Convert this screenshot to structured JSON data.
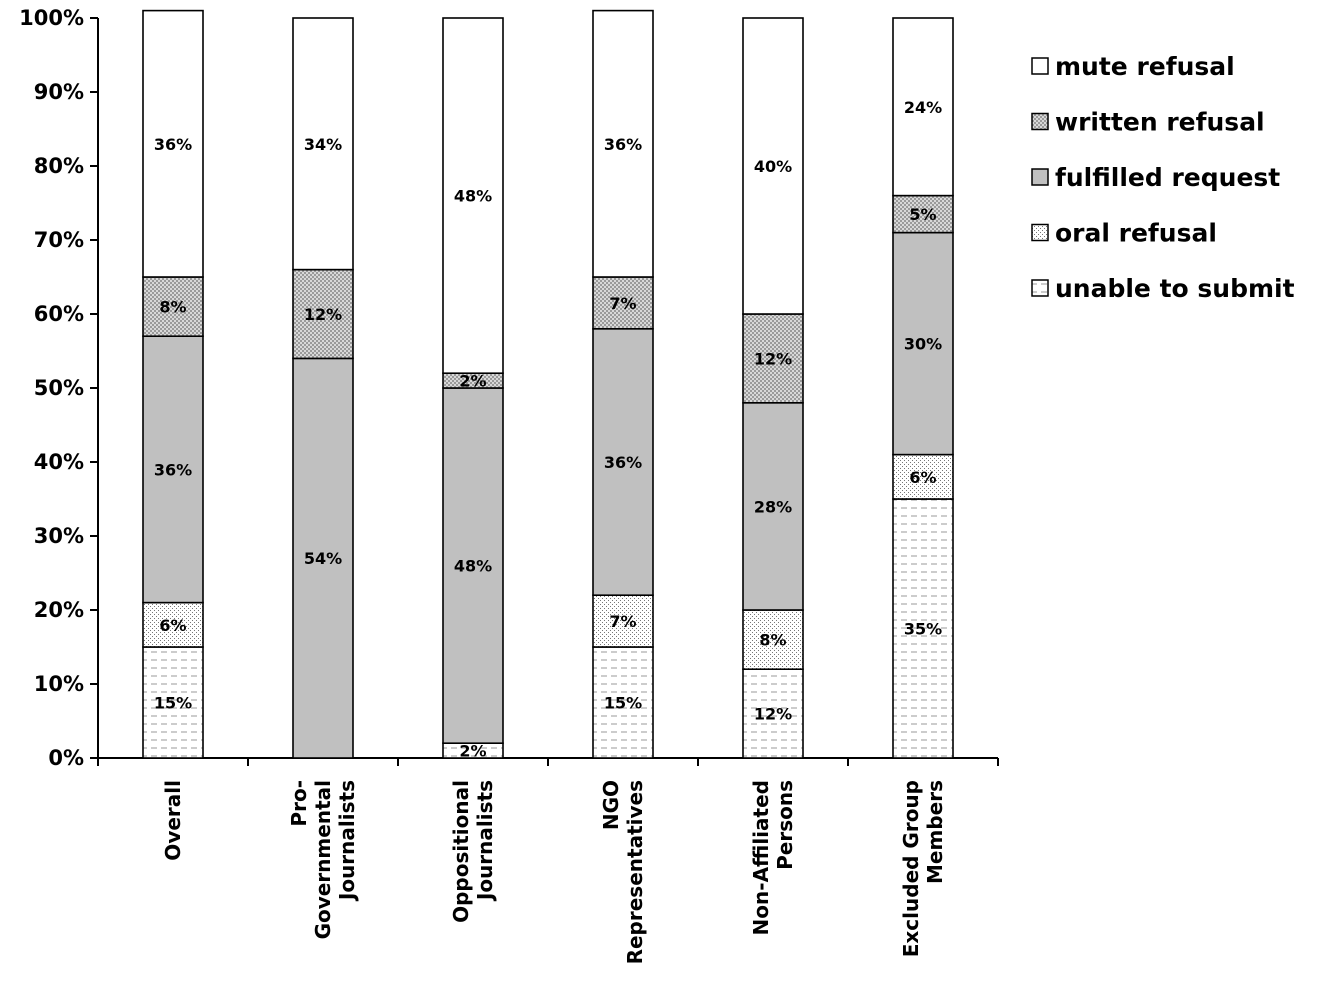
{
  "chart_data": {
    "type": "bar",
    "stacked": true,
    "title": "",
    "xlabel": "",
    "ylabel": "",
    "ylim": [
      0,
      100
    ],
    "y_ticks": [
      "0%",
      "10%",
      "20%",
      "30%",
      "40%",
      "50%",
      "60%",
      "70%",
      "80%",
      "90%",
      "100%"
    ],
    "categories": [
      [
        "Overall"
      ],
      [
        "Pro-",
        "Governmental",
        "Journalists"
      ],
      [
        "Oppositional",
        "Journalists"
      ],
      [
        "NGO",
        "Representatives"
      ],
      [
        "Non-Affiliated",
        "Persons"
      ],
      [
        "Excluded Group",
        "Members"
      ]
    ],
    "category_names": [
      "Overall",
      "Pro-Governmental Journalists",
      "Oppositional Journalists",
      "NGO Representatives",
      "Non-Affiliated Persons",
      "Excluded Group Members"
    ],
    "series": [
      {
        "name": "unable to submit",
        "pattern": "dash",
        "values": [
          15,
          0,
          2,
          15,
          12,
          35
        ],
        "labels": [
          "15%",
          "",
          "2%",
          "15%",
          "12%",
          "35%"
        ]
      },
      {
        "name": "oral refusal",
        "pattern": "dots",
        "values": [
          6,
          0,
          0,
          7,
          8,
          6
        ],
        "labels": [
          "6%",
          "",
          "",
          "7%",
          "8%",
          "6%"
        ]
      },
      {
        "name": "fulfilled request",
        "pattern": "solid-gray",
        "values": [
          36,
          54,
          48,
          36,
          28,
          30
        ],
        "labels": [
          "36%",
          "54%",
          "48%",
          "36%",
          "28%",
          "30%"
        ]
      },
      {
        "name": "written refusal",
        "pattern": "crosshatch",
        "values": [
          8,
          12,
          2,
          7,
          12,
          5
        ],
        "labels": [
          "8%",
          "12%",
          "2%",
          "7%",
          "12%",
          "5%"
        ]
      },
      {
        "name": "mute refusal",
        "pattern": "white",
        "values": [
          36,
          34,
          48,
          36,
          40,
          24
        ],
        "labels": [
          "36%",
          "34%",
          "48%",
          "36%",
          "40%",
          "24%"
        ]
      }
    ],
    "legend_order": [
      "mute refusal",
      "written refusal",
      "fulfilled request",
      "oral refusal",
      "unable to submit"
    ],
    "legend_position": "right",
    "grid": false,
    "colors": {
      "fulfilled": "#c0c0c0",
      "crosshatch": "#b8b8b8",
      "white": "#ffffff",
      "axis": "#000000"
    }
  }
}
